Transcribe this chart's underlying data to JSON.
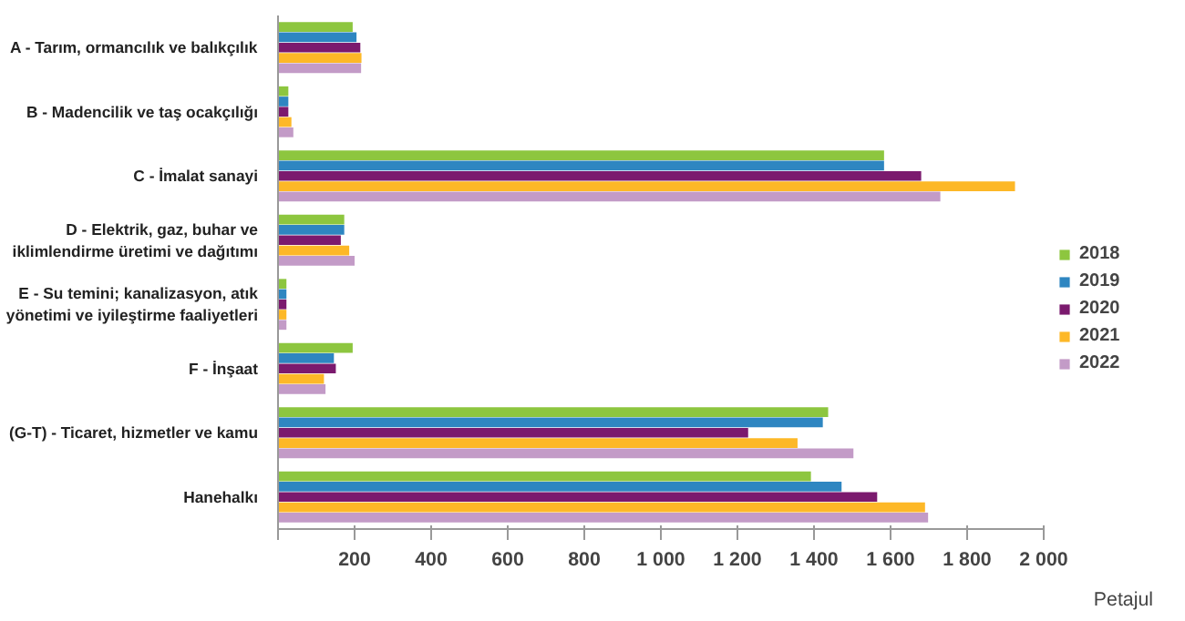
{
  "chart_data": {
    "type": "bar",
    "orientation": "horizontal",
    "xlabel": "Petajul",
    "categories": [
      "A - Tarım, ormancılık ve balıkçılık",
      "B - Madencilik ve taş ocakçılığı",
      "C - İmalat sanayi",
      "D - Elektrik, gaz, buhar ve iklimlendirme üretimi ve dağıtımı",
      "E - Su temini; kanalizasyon, atık yönetimi ve iyileştirme faaliyetleri",
      "F - İnşaat",
      "(G-T) - Ticaret, hizmetler ve kamu",
      "Hanehalkı"
    ],
    "series": [
      {
        "name": "2018",
        "color": "#8dc63f",
        "values": [
          195,
          27,
          1583,
          173,
          22,
          195,
          1437,
          1392
        ]
      },
      {
        "name": "2019",
        "color": "#2e86c1",
        "values": [
          205,
          27,
          1583,
          173,
          22,
          146,
          1423,
          1472
        ]
      },
      {
        "name": "2020",
        "color": "#7b1a6e",
        "values": [
          215,
          27,
          1680,
          164,
          22,
          151,
          1228,
          1565
        ]
      },
      {
        "name": "2021",
        "color": "#fdb827",
        "values": [
          218,
          35,
          1925,
          186,
          22,
          120,
          1357,
          1690
        ]
      },
      {
        "name": "2022",
        "color": "#c39bc7",
        "values": [
          217,
          40,
          1730,
          200,
          22,
          124,
          1503,
          1698
        ]
      }
    ],
    "xlim": [
      0,
      2000
    ],
    "xticks": [
      {
        "value": 0,
        "label": null
      },
      200,
      400,
      600,
      800,
      {
        "value": 1000,
        "label": "1 000"
      },
      {
        "value": 1200,
        "label": "1 200"
      },
      {
        "value": 1400,
        "label": "1 400"
      },
      {
        "value": 1600,
        "label": "1 600"
      },
      {
        "value": 1800,
        "label": "1 800"
      },
      {
        "value": 2000,
        "label": "2 000"
      }
    ],
    "grid": false,
    "legend": "right"
  }
}
